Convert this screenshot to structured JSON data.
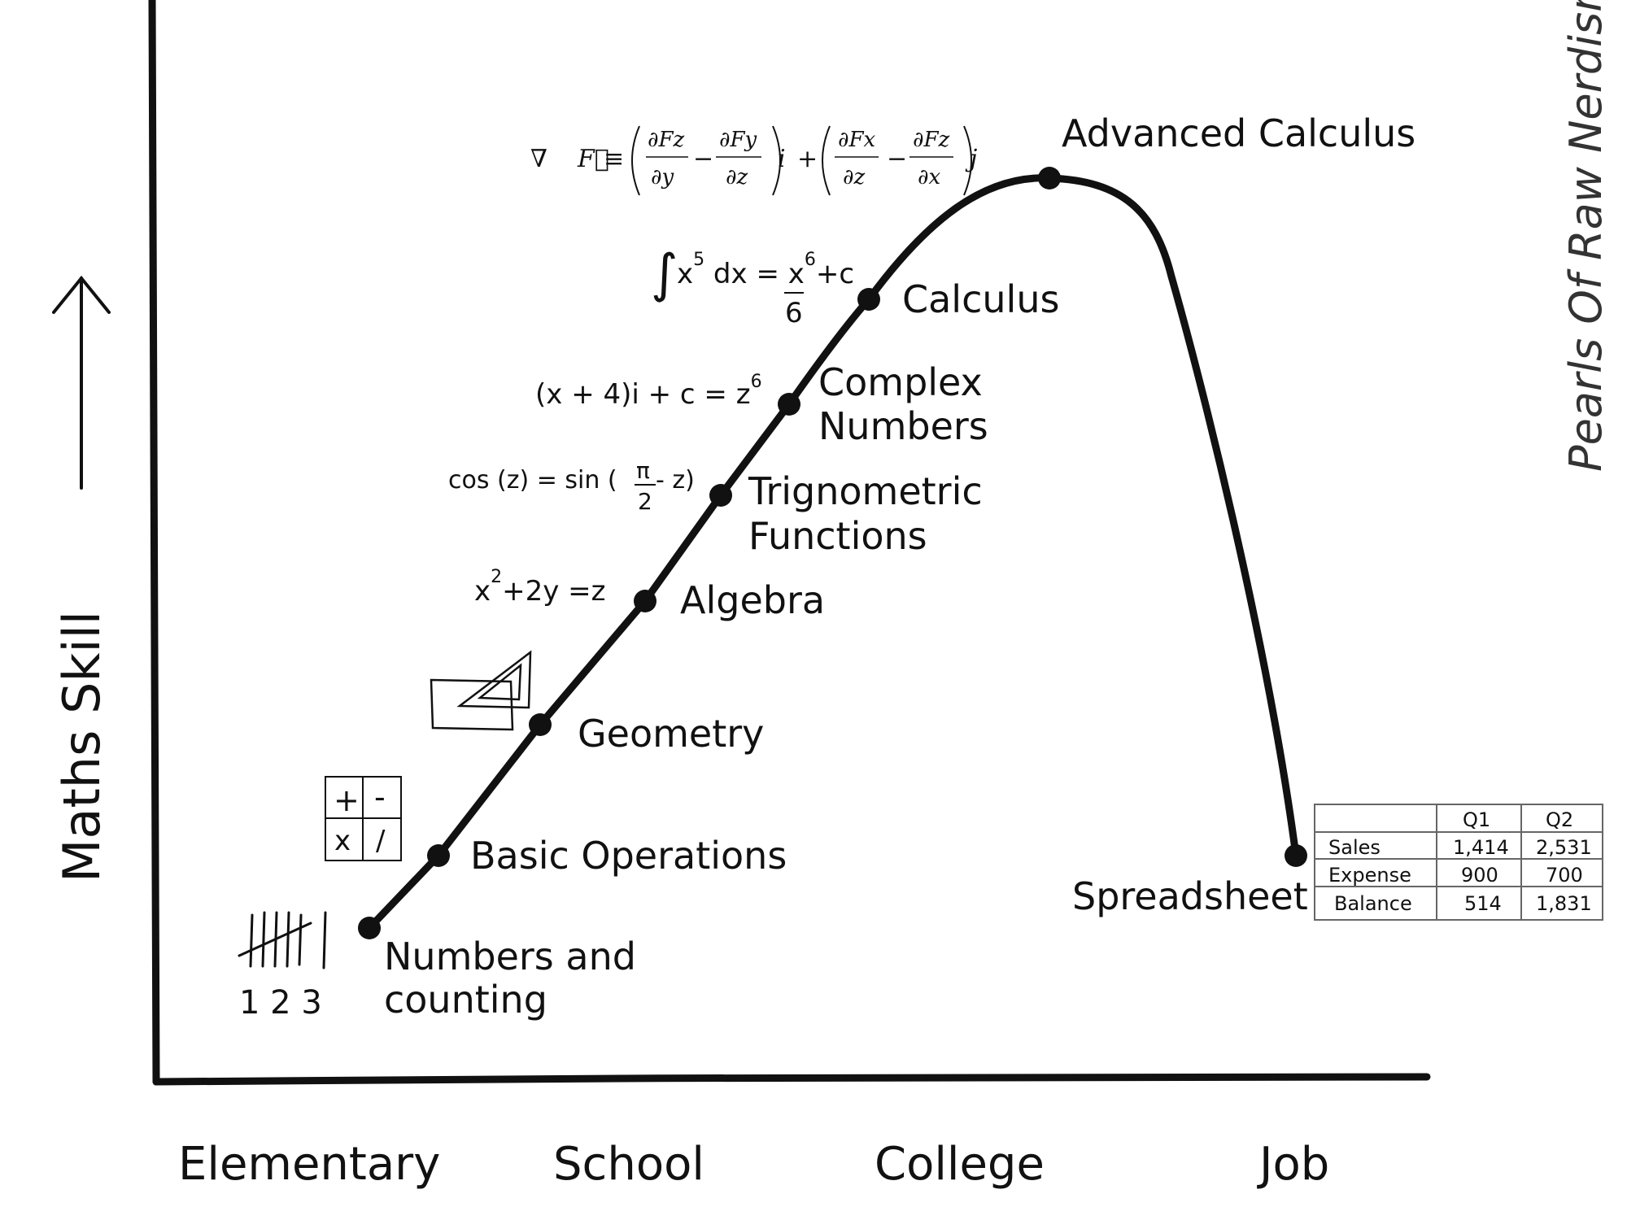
{
  "axes": {
    "y_label": "Maths Skill",
    "x_labels": [
      "Elementary",
      "School",
      "College",
      "Job"
    ]
  },
  "watermark": "Pearls Of Raw Nerdism",
  "stages": [
    {
      "label_lines": [
        "Numbers and",
        "counting"
      ]
    },
    {
      "label_lines": [
        "Basic Operations"
      ]
    },
    {
      "label_lines": [
        "Geometry"
      ]
    },
    {
      "label_lines": [
        "Algebra"
      ]
    },
    {
      "label_lines": [
        "Trignometric",
        "Functions"
      ]
    },
    {
      "label_lines": [
        "Complex",
        "Numbers"
      ]
    },
    {
      "label_lines": [
        "Calculus"
      ]
    },
    {
      "label_lines": [
        "Advanced Calculus"
      ]
    },
    {
      "label_lines": [
        "Spreadsheet"
      ]
    }
  ],
  "doodles": {
    "counting_digits": "1 2 3",
    "operators": [
      "+",
      "-",
      "x",
      "/"
    ],
    "algebra_eq": {
      "base": "x",
      "exp": "2",
      "rest": "+2y =z"
    },
    "trig_eq": {
      "left": "cos (z) = sin (",
      "num": "π",
      "den": "2",
      "right": " - z)"
    },
    "complex_eq": {
      "text": "(x + 4)i + c = z",
      "exp": "6"
    },
    "integral_eq": {
      "sign": "∫",
      "base": "x",
      "exp": "5",
      "mid": " dx = ",
      "num": "x",
      "num_exp": "6",
      "plus": "+c",
      "den": "6"
    },
    "curl_eq": {
      "nabla": "∇",
      "F": "F⃗",
      "eqsign": "≡",
      "t1n": "∂Fz",
      "t1d": "∂y",
      "t2n": "∂Fy",
      "t2d": "∂z",
      "i": "i",
      "plus": "+",
      "t3n": "∂Fx",
      "t3d": "∂z",
      "t4n": "∂Fz",
      "t4d": "∂x",
      "j": "j",
      "minus": "−"
    }
  },
  "spreadsheet_table": {
    "columns": [
      "",
      "Q1",
      "Q2"
    ],
    "rows": [
      [
        "Sales",
        "1,414",
        "2,531"
      ],
      [
        "Expense",
        "900",
        "700"
      ],
      [
        "Balance",
        "514",
        "1,831"
      ]
    ]
  }
}
